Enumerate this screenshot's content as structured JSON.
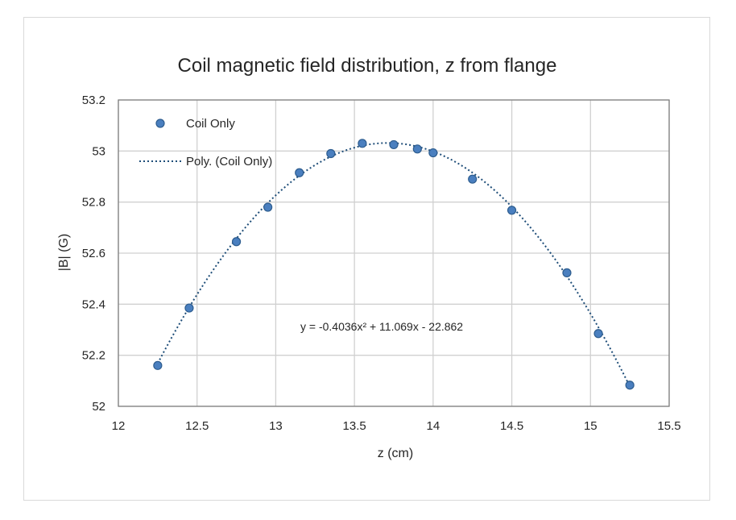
{
  "chart_data": {
    "type": "scatter",
    "title": "Coil magnetic field distribution, z from flange",
    "xlabel": "z (cm)",
    "ylabel": "|B| (G)",
    "xlim": [
      12,
      15.5
    ],
    "ylim": [
      52,
      53.2
    ],
    "x_ticks": [
      "12",
      "12.5",
      "13",
      "13.5",
      "14",
      "14.5",
      "15",
      "15.5"
    ],
    "y_ticks": [
      "52",
      "52.2",
      "52.4",
      "52.6",
      "52.8",
      "53",
      "53.2"
    ],
    "grid": true,
    "legend_position": "top-left",
    "series": [
      {
        "name": "Coil Only",
        "marker": "circle",
        "color": "#4a7fbf",
        "x": [
          12.25,
          12.45,
          12.75,
          12.95,
          13.15,
          13.35,
          13.55,
          13.75,
          13.9,
          14.0,
          14.25,
          14.5,
          14.85,
          15.05,
          15.25
        ],
        "y": [
          52.16,
          52.385,
          52.645,
          52.78,
          52.915,
          52.99,
          53.03,
          53.025,
          53.008,
          52.993,
          52.89,
          52.768,
          52.523,
          52.285,
          52.083
        ]
      }
    ],
    "trendline": {
      "name": "Poly. (Coil Only)",
      "kind": "polynomial",
      "order": 2,
      "color": "#1f4e79",
      "style": "dotted",
      "coefficients": [
        -0.4036,
        11.069,
        -22.862
      ],
      "x_range": [
        12.25,
        15.25
      ],
      "equation_label": "y = -0.4036x² + 11.069x - 22.862"
    }
  }
}
